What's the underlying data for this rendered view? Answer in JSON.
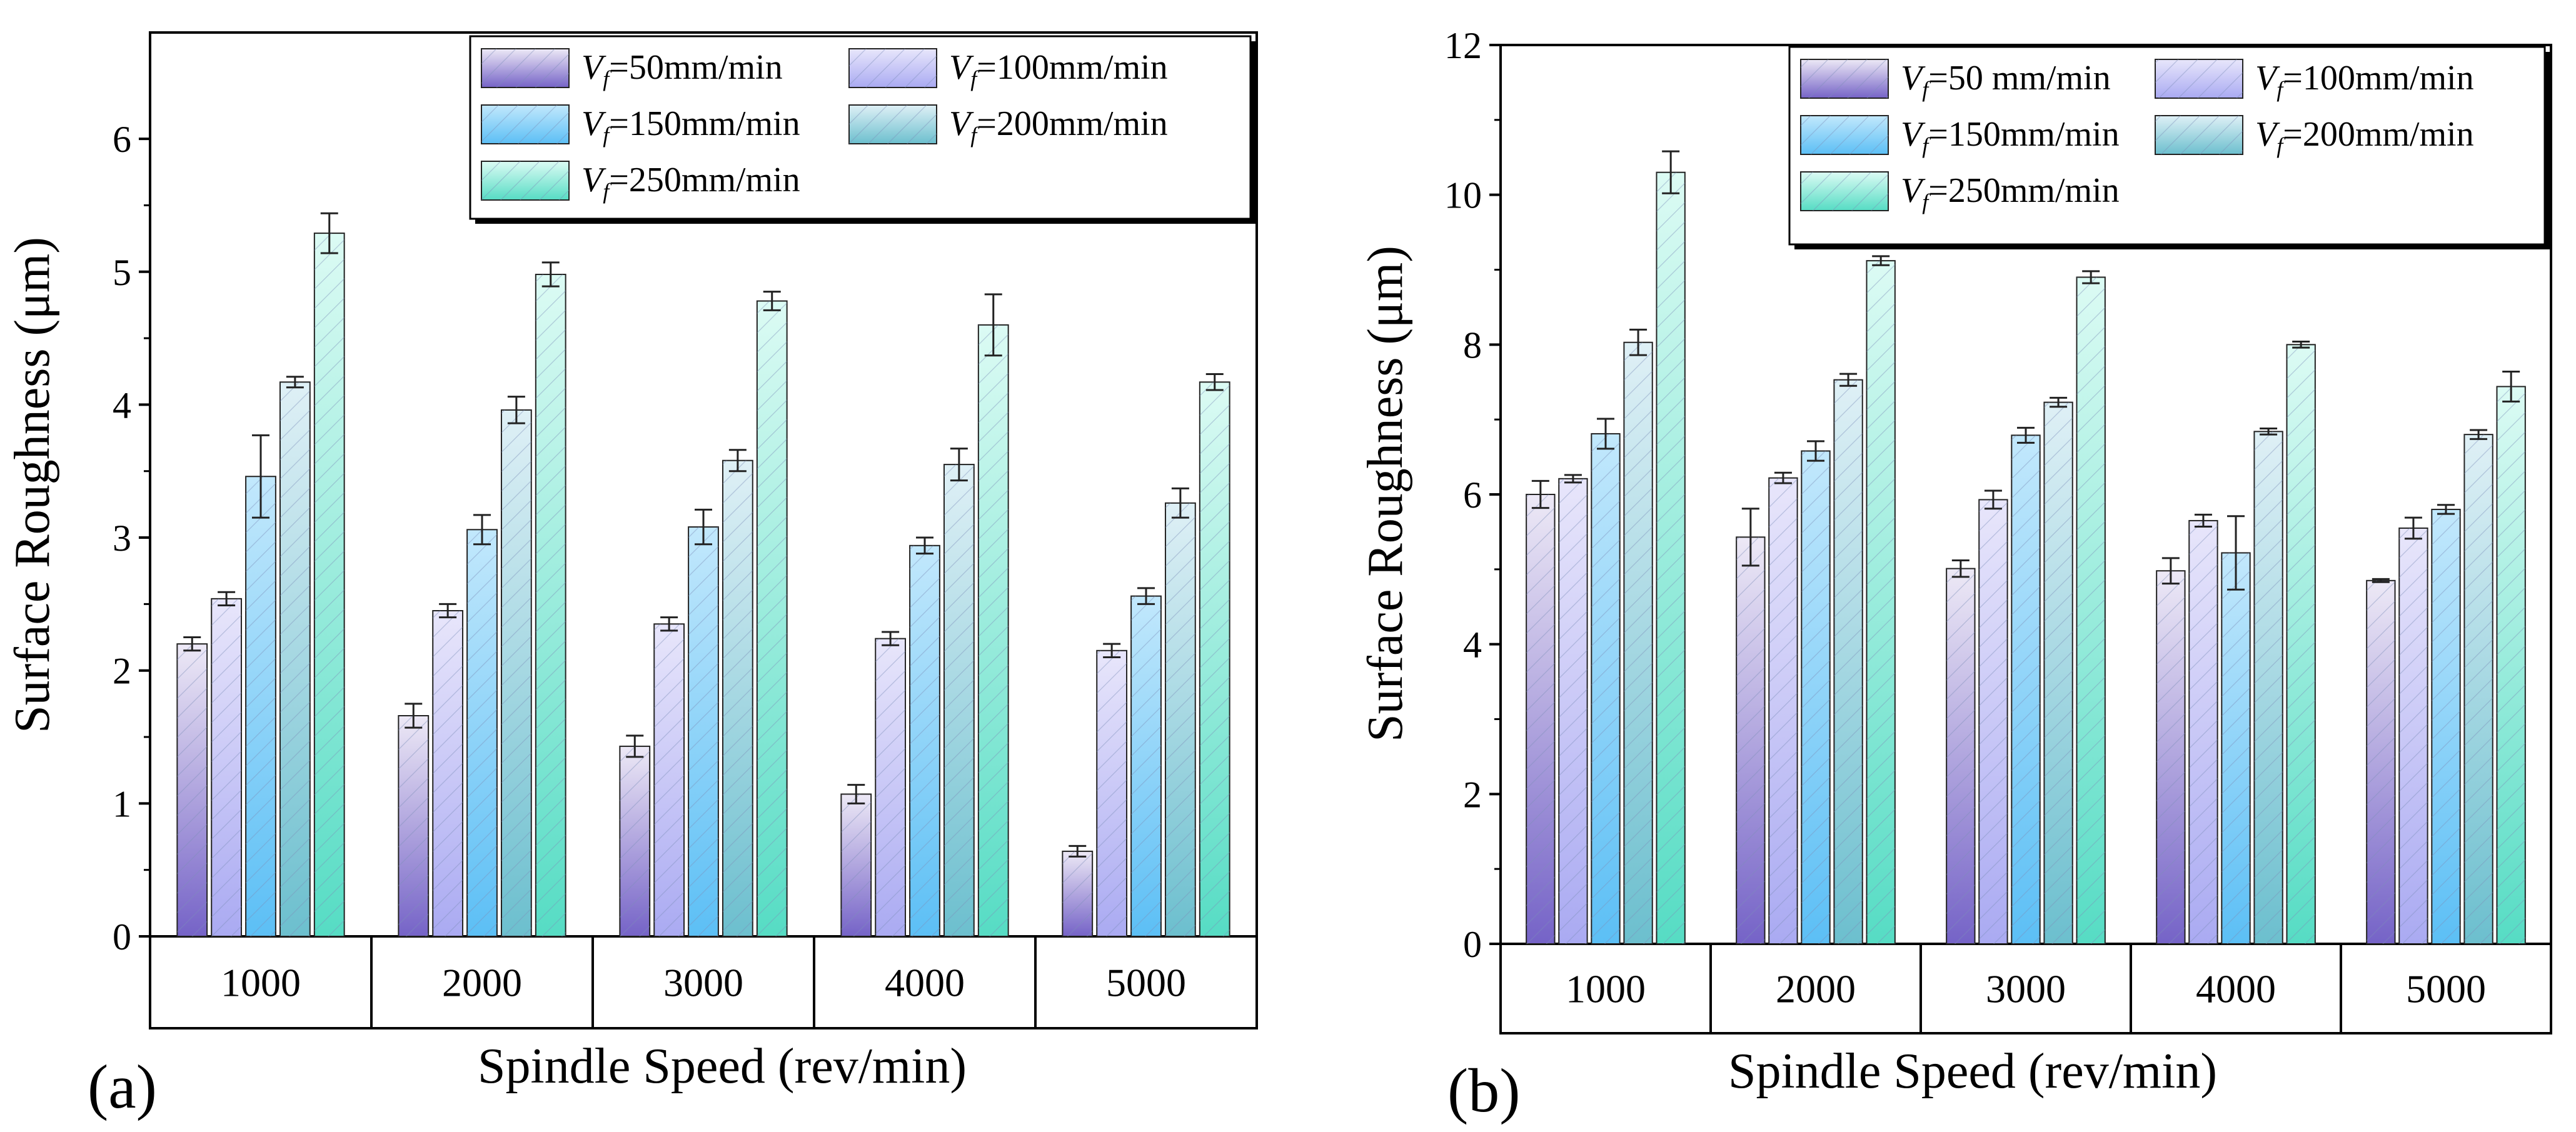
{
  "chart_data": [
    {
      "type": "bar",
      "panel_label": "(a)",
      "xlabel": "Spindle Speed (rev/min)",
      "ylabel": "Surface Roughness (μm)",
      "ylim": [
        0,
        6.8
      ],
      "yticks": [
        0,
        1,
        2,
        3,
        4,
        5,
        6
      ],
      "categories": [
        "1000",
        "2000",
        "3000",
        "4000",
        "5000"
      ],
      "series": [
        {
          "name": "Vf=50mm/min",
          "values": [
            2.2,
            1.66,
            1.43,
            1.07,
            0.64
          ],
          "errors": [
            0.05,
            0.09,
            0.08,
            0.07,
            0.04
          ]
        },
        {
          "name": "Vf=100mm/min",
          "values": [
            2.54,
            2.45,
            2.35,
            2.24,
            2.15
          ],
          "errors": [
            0.05,
            0.05,
            0.05,
            0.05,
            0.05
          ]
        },
        {
          "name": "Vf=150mm/min",
          "values": [
            3.46,
            3.06,
            3.08,
            2.94,
            2.56
          ],
          "errors": [
            0.31,
            0.11,
            0.13,
            0.06,
            0.06
          ]
        },
        {
          "name": "Vf=200mm/min",
          "values": [
            4.17,
            3.96,
            3.58,
            3.55,
            3.26
          ],
          "errors": [
            0.04,
            0.1,
            0.08,
            0.12,
            0.11
          ]
        },
        {
          "name": "Vf=250mm/min",
          "values": [
            5.29,
            4.98,
            4.78,
            4.6,
            4.17
          ],
          "errors": [
            0.15,
            0.09,
            0.07,
            0.23,
            0.06
          ]
        }
      ],
      "legend": [
        {
          "pre": "V",
          "sub": "f",
          "post": "=50mm/min"
        },
        {
          "pre": "V",
          "sub": "f",
          "post": "=100mm/min"
        },
        {
          "pre": "V",
          "sub": "f",
          "post": "=150mm/min"
        },
        {
          "pre": "V",
          "sub": "f",
          "post": "=200mm/min"
        },
        {
          "pre": "V",
          "sub": "f",
          "post": "=250mm/min"
        }
      ]
    },
    {
      "type": "bar",
      "panel_label": "(b)",
      "xlabel": "Spindle Speed (rev/min)",
      "ylabel": "Surface Roughness (μm)",
      "ylim": [
        0,
        12
      ],
      "yticks": [
        0,
        2,
        4,
        6,
        8,
        10,
        12
      ],
      "categories": [
        "1000",
        "2000",
        "3000",
        "4000",
        "5000"
      ],
      "series": [
        {
          "name": "Vf=50 mm/min",
          "values": [
            6.0,
            5.43,
            5.01,
            4.98,
            4.85
          ],
          "errors": [
            0.18,
            0.38,
            0.11,
            0.17,
            0.02
          ]
        },
        {
          "name": "Vf=100mm/min",
          "values": [
            6.21,
            6.22,
            5.93,
            5.65,
            5.55
          ],
          "errors": [
            0.05,
            0.07,
            0.12,
            0.08,
            0.14
          ]
        },
        {
          "name": "Vf=150mm/min",
          "values": [
            6.81,
            6.58,
            6.79,
            5.22,
            5.8
          ],
          "errors": [
            0.2,
            0.13,
            0.1,
            0.49,
            0.06
          ]
        },
        {
          "name": "Vf=200mm/min",
          "values": [
            8.03,
            7.53,
            7.23,
            6.84,
            6.8
          ],
          "errors": [
            0.17,
            0.08,
            0.06,
            0.04,
            0.06
          ]
        },
        {
          "name": "Vf=250mm/min",
          "values": [
            10.3,
            9.12,
            8.9,
            8.0,
            7.44
          ],
          "errors": [
            0.28,
            0.06,
            0.08,
            0.04,
            0.2
          ]
        }
      ],
      "legend": [
        {
          "pre": "V",
          "sub": "f",
          "post": "=50 mm/min"
        },
        {
          "pre": "V",
          "sub": "f",
          "post": "=100mm/min"
        },
        {
          "pre": "V",
          "sub": "f",
          "post": "=150mm/min"
        },
        {
          "pre": "V",
          "sub": "f",
          "post": "=200mm/min"
        },
        {
          "pre": "V",
          "sub": "f",
          "post": "=250mm/min"
        }
      ]
    }
  ],
  "colors": {
    "series_top": [
      "#ede9f6",
      "#e8e6fb",
      "#c2e8fc",
      "#dff0f6",
      "#dcfbf4"
    ],
    "series_bottom": [
      "#7563c7",
      "#aaaaf2",
      "#5cbff5",
      "#6cbfce",
      "#56dcc4"
    ],
    "hatch": "#7d8fb8",
    "axis": "#000000"
  }
}
